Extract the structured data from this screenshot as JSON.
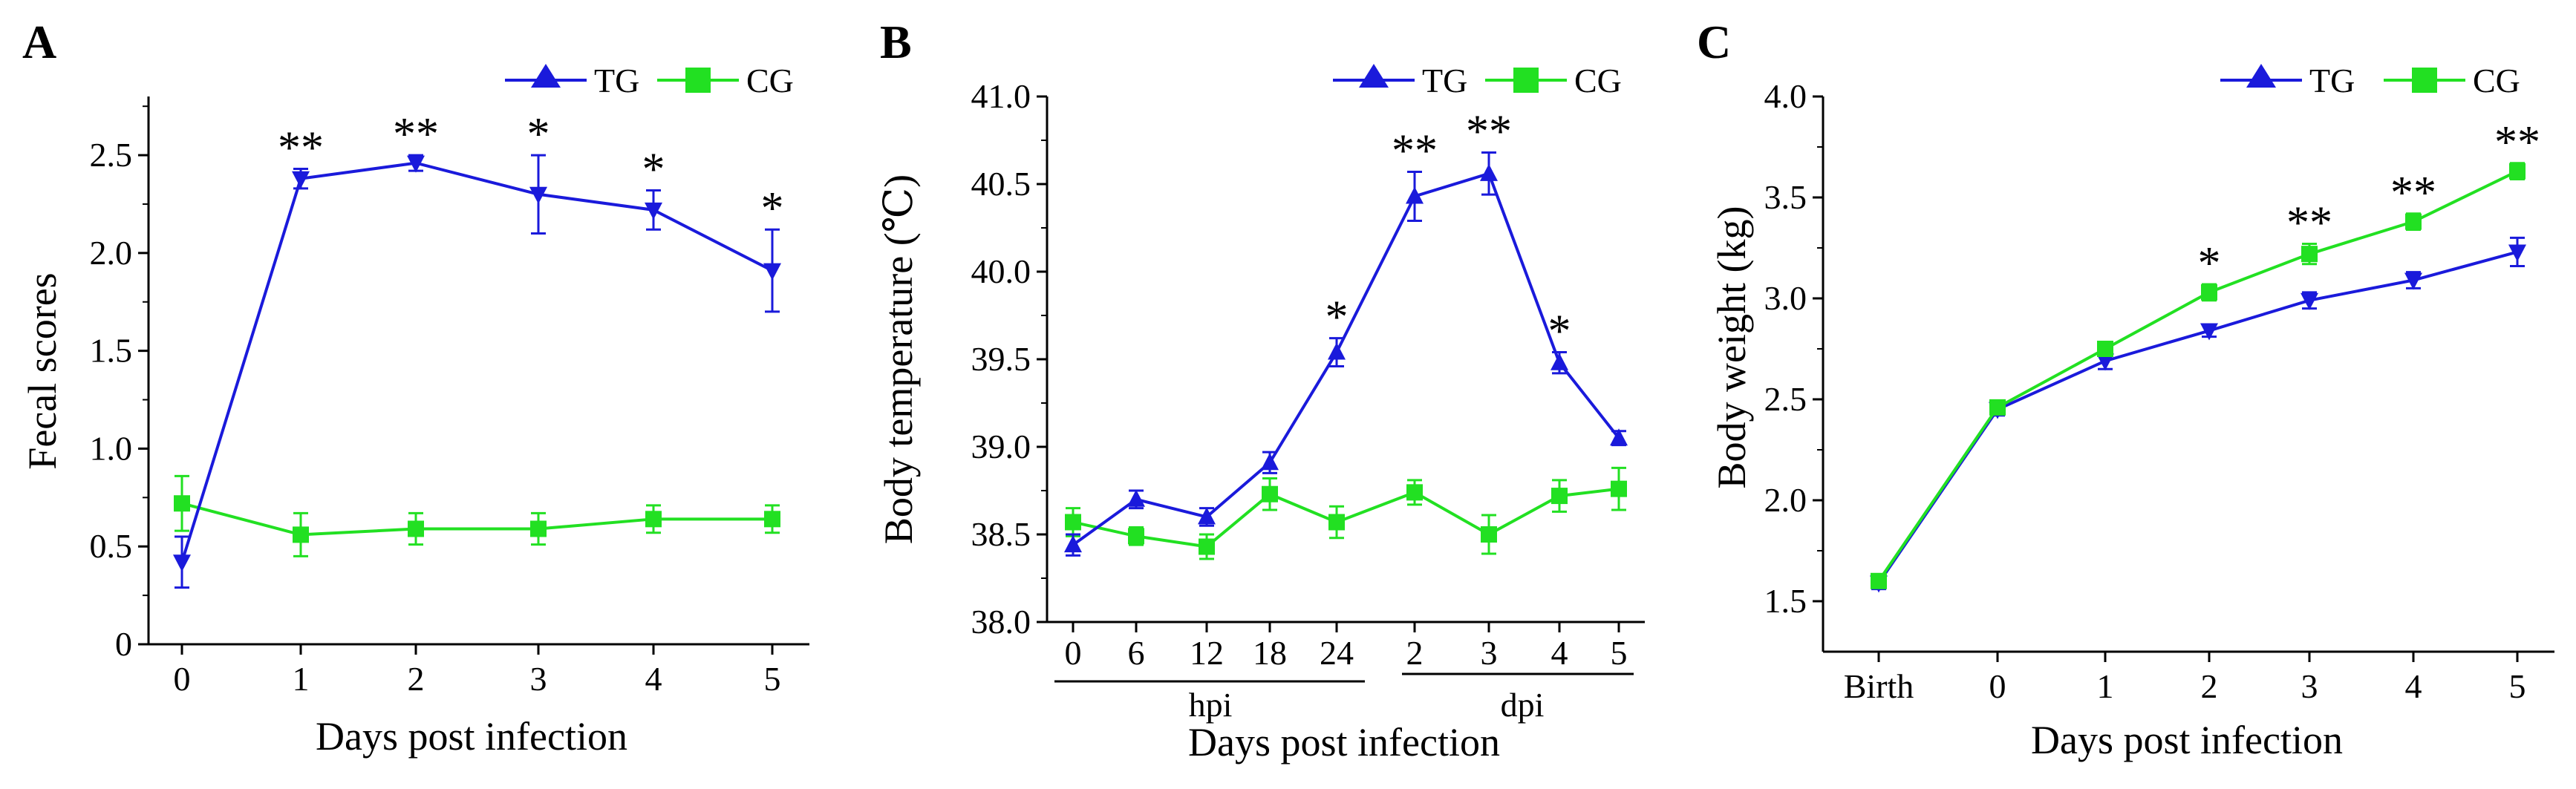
{
  "colors": {
    "TG": "#1a1adb",
    "CG": "#22e022",
    "axis": "#000000"
  },
  "chart_data": [
    {
      "type": "line",
      "panel": "A",
      "xlabel": "Days post infection",
      "ylabel": "Fecal scores",
      "categories": [
        "0",
        "1",
        "2",
        "3",
        "4",
        "5"
      ],
      "ylim": [
        0,
        2.8
      ],
      "yticks": [
        "0",
        "0.5",
        "1.0",
        "1.5",
        "2.0",
        "2.5"
      ],
      "ytick_values": [
        0,
        0.5,
        1.0,
        1.5,
        2.0,
        2.5
      ],
      "legend": [
        "TG",
        "CG"
      ],
      "series": [
        {
          "name": "TG",
          "marker": "triangle-down",
          "values": [
            0.42,
            2.38,
            2.46,
            2.3,
            2.22,
            1.91
          ],
          "errors": [
            0.13,
            0.05,
            0.04,
            0.2,
            0.1,
            0.21
          ]
        },
        {
          "name": "CG",
          "marker": "square",
          "values": [
            0.72,
            0.56,
            0.59,
            0.59,
            0.64,
            0.64
          ],
          "errors": [
            0.14,
            0.11,
            0.08,
            0.08,
            0.07,
            0.07
          ]
        }
      ],
      "annotations": [
        "**",
        "**",
        "*",
        "*",
        "*"
      ],
      "annotation_index": [
        1,
        2,
        3,
        4,
        5
      ]
    },
    {
      "type": "line",
      "panel": "B",
      "xlabel": "Days post infection",
      "ylabel": "Body temperature (℃)",
      "categories": [
        "0",
        "6",
        "12",
        "18",
        "24",
        "2",
        "3",
        "4",
        "5"
      ],
      "group_labels": [
        "hpi",
        "dpi"
      ],
      "ylim": [
        38.0,
        41.0
      ],
      "yticks": [
        "38.0",
        "38.5",
        "39.0",
        "39.5",
        "40.0",
        "40.5",
        "41.0"
      ],
      "ytick_values": [
        38.0,
        38.5,
        39.0,
        39.5,
        40.0,
        40.5,
        41.0
      ],
      "legend": [
        "TG",
        "CG"
      ],
      "series": [
        {
          "name": "TG",
          "marker": "triangle-up",
          "values": [
            38.44,
            38.7,
            38.6,
            38.91,
            39.54,
            40.43,
            40.56,
            39.48,
            39.05
          ],
          "errors": [
            0.06,
            0.05,
            0.05,
            0.06,
            0.08,
            0.14,
            0.12,
            0.06,
            0.04
          ]
        },
        {
          "name": "CG",
          "marker": "square",
          "values": [
            38.57,
            38.49,
            38.43,
            38.73,
            38.57,
            38.74,
            38.5,
            38.72,
            38.76
          ],
          "errors": [
            0.08,
            0.05,
            0.07,
            0.09,
            0.09,
            0.07,
            0.11,
            0.09,
            0.12
          ]
        }
      ],
      "annotations": [
        "*",
        "**",
        "**",
        "*"
      ],
      "annotation_index": [
        4,
        5,
        6,
        7
      ]
    },
    {
      "type": "line",
      "panel": "C",
      "xlabel": "Days post infection",
      "ylabel": "Body weight (kg)",
      "categories": [
        "Birth",
        "0",
        "1",
        "2",
        "3",
        "4",
        "5"
      ],
      "ylim": [
        1.25,
        4.0
      ],
      "yticks": [
        "1.5",
        "2.0",
        "2.5",
        "3.0",
        "3.5",
        "4.0"
      ],
      "ytick_values": [
        1.5,
        2.0,
        2.5,
        3.0,
        3.5,
        4.0
      ],
      "legend": [
        "TG",
        "CG"
      ],
      "series": [
        {
          "name": "TG",
          "marker": "triangle-down",
          "values": [
            1.59,
            2.45,
            2.69,
            2.84,
            2.99,
            3.09,
            3.23
          ],
          "errors": [
            0.03,
            0.03,
            0.04,
            0.03,
            0.04,
            0.04,
            0.07
          ]
        },
        {
          "name": "CG",
          "marker": "square",
          "values": [
            1.6,
            2.46,
            2.75,
            3.03,
            3.22,
            3.38,
            3.63
          ],
          "errors": [
            0.03,
            0.03,
            0.03,
            0.04,
            0.05,
            0.04,
            0.04
          ]
        }
      ],
      "annotations": [
        "*",
        "**",
        "**",
        "**"
      ],
      "annotation_index": [
        3,
        4,
        5,
        6
      ]
    }
  ]
}
